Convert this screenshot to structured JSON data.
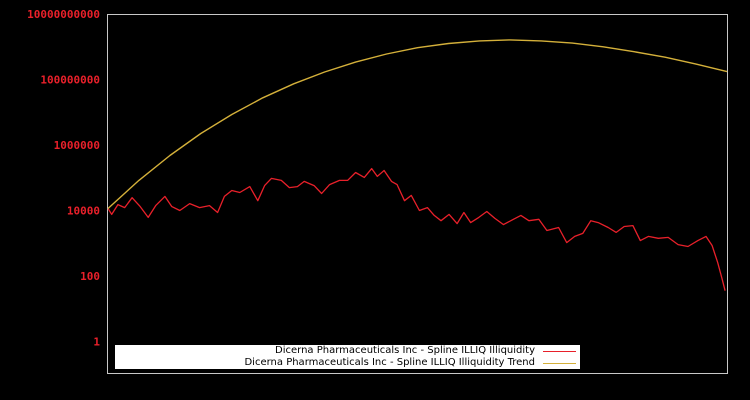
{
  "chart_data": {
    "type": "line",
    "title": "",
    "xlabel": "",
    "ylabel": "",
    "y_scale": "log",
    "ylim": [
      0.1,
      10000000000
    ],
    "y_ticks": [
      {
        "value": 10000000000,
        "label": "10000000000"
      },
      {
        "value": 100000000,
        "label": "100000000"
      },
      {
        "value": 1000000,
        "label": "1000000"
      },
      {
        "value": 10000,
        "label": "10000"
      },
      {
        "value": 100,
        "label": "100"
      },
      {
        "value": 1,
        "label": "1"
      }
    ],
    "x_ticks": [],
    "grid": false,
    "legend_position": "bottom-left inside",
    "series": [
      {
        "name": "Dicerna Pharmaceuticals Inc - Spline ILLIQ Illiquidity",
        "color": "#e8202a",
        "x_frac_log10": [
          [
            0.0,
            4.06
          ],
          [
            0.006,
            3.88
          ],
          [
            0.016,
            4.18
          ],
          [
            0.027,
            4.09
          ],
          [
            0.039,
            4.39
          ],
          [
            0.052,
            4.12
          ],
          [
            0.065,
            3.79
          ],
          [
            0.077,
            4.15
          ],
          [
            0.092,
            4.43
          ],
          [
            0.103,
            4.12
          ],
          [
            0.116,
            4.0
          ],
          [
            0.132,
            4.21
          ],
          [
            0.148,
            4.09
          ],
          [
            0.164,
            4.15
          ],
          [
            0.177,
            3.94
          ],
          [
            0.188,
            4.43
          ],
          [
            0.2,
            4.61
          ],
          [
            0.213,
            4.55
          ],
          [
            0.229,
            4.73
          ],
          [
            0.242,
            4.3
          ],
          [
            0.253,
            4.76
          ],
          [
            0.264,
            4.98
          ],
          [
            0.28,
            4.92
          ],
          [
            0.293,
            4.7
          ],
          [
            0.306,
            4.73
          ],
          [
            0.317,
            4.89
          ],
          [
            0.333,
            4.76
          ],
          [
            0.345,
            4.52
          ],
          [
            0.358,
            4.79
          ],
          [
            0.374,
            4.92
          ],
          [
            0.387,
            4.92
          ],
          [
            0.4,
            5.16
          ],
          [
            0.414,
            5.01
          ],
          [
            0.426,
            5.28
          ],
          [
            0.435,
            5.04
          ],
          [
            0.446,
            5.22
          ],
          [
            0.458,
            4.89
          ],
          [
            0.467,
            4.79
          ],
          [
            0.479,
            4.3
          ],
          [
            0.49,
            4.46
          ],
          [
            0.503,
            4.0
          ],
          [
            0.516,
            4.09
          ],
          [
            0.527,
            3.85
          ],
          [
            0.538,
            3.69
          ],
          [
            0.551,
            3.88
          ],
          [
            0.564,
            3.6
          ],
          [
            0.575,
            3.94
          ],
          [
            0.586,
            3.63
          ],
          [
            0.599,
            3.79
          ],
          [
            0.612,
            3.97
          ],
          [
            0.625,
            3.76
          ],
          [
            0.639,
            3.57
          ],
          [
            0.655,
            3.73
          ],
          [
            0.667,
            3.85
          ],
          [
            0.68,
            3.69
          ],
          [
            0.696,
            3.73
          ],
          [
            0.709,
            3.39
          ],
          [
            0.728,
            3.48
          ],
          [
            0.741,
            3.02
          ],
          [
            0.754,
            3.21
          ],
          [
            0.767,
            3.3
          ],
          [
            0.78,
            3.69
          ],
          [
            0.792,
            3.63
          ],
          [
            0.808,
            3.48
          ],
          [
            0.821,
            3.33
          ],
          [
            0.834,
            3.51
          ],
          [
            0.848,
            3.54
          ],
          [
            0.86,
            3.08
          ],
          [
            0.873,
            3.21
          ],
          [
            0.889,
            3.15
          ],
          [
            0.905,
            3.18
          ],
          [
            0.921,
            2.96
          ],
          [
            0.937,
            2.9
          ],
          [
            0.953,
            3.08
          ],
          [
            0.966,
            3.21
          ],
          [
            0.976,
            2.93
          ],
          [
            0.985,
            2.41
          ],
          [
            0.992,
            1.92
          ],
          [
            0.997,
            1.55
          ]
        ]
      },
      {
        "name": "Dicerna Pharmaceuticals Inc - Spline ILLIQ Illiquidity Trend",
        "color": "#d4b03a",
        "x_frac_log10": [
          [
            0.0,
            4.06
          ],
          [
            0.05,
            4.92
          ],
          [
            0.1,
            5.68
          ],
          [
            0.15,
            6.35
          ],
          [
            0.2,
            6.93
          ],
          [
            0.25,
            7.44
          ],
          [
            0.3,
            7.87
          ],
          [
            0.35,
            8.23
          ],
          [
            0.4,
            8.53
          ],
          [
            0.45,
            8.78
          ],
          [
            0.5,
            8.97
          ],
          [
            0.55,
            9.1
          ],
          [
            0.6,
            9.18
          ],
          [
            0.65,
            9.21
          ],
          [
            0.7,
            9.18
          ],
          [
            0.75,
            9.11
          ],
          [
            0.8,
            9.0
          ],
          [
            0.85,
            8.85
          ],
          [
            0.9,
            8.68
          ],
          [
            0.95,
            8.47
          ],
          [
            1.0,
            8.24
          ]
        ]
      }
    ]
  },
  "legend": {
    "items": [
      {
        "label": "Dicerna Pharmaceuticals Inc - Spline ILLIQ Illiquidity",
        "color": "#e8202a"
      },
      {
        "label": "Dicerna Pharmaceuticals Inc - Spline ILLIQ Illiquidity Trend",
        "color": "#d4b03a"
      }
    ]
  },
  "style": {
    "background": "#000000",
    "axis_color": "#c8c8c8",
    "tick_label_color": "#e8202a"
  }
}
